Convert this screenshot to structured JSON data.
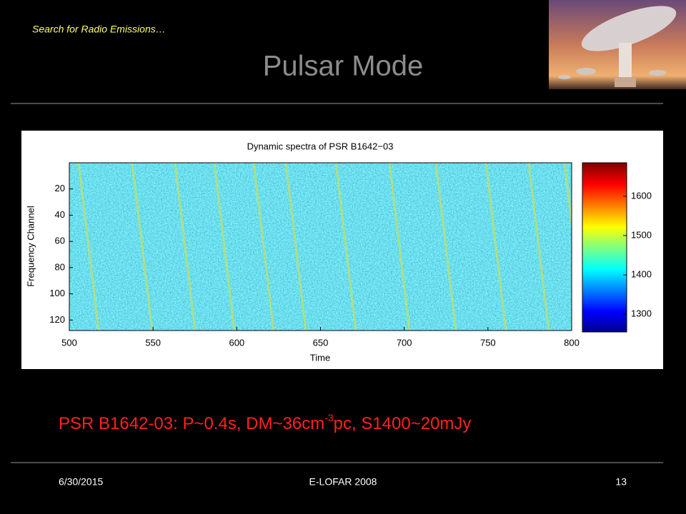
{
  "header": {
    "section": "Search for Radio Emissions…",
    "title": "Pulsar Mode"
  },
  "figure": {
    "title": "Dynamic spectra of PSR B1642−03",
    "xlabel": "Time",
    "ylabel": "Frequency Channel",
    "xlim": [
      500,
      800
    ],
    "xticks": [
      500,
      550,
      600,
      650,
      700,
      750,
      800
    ],
    "ylim": [
      0,
      128
    ],
    "y_inverted": true,
    "yticks": [
      20,
      40,
      60,
      80,
      100,
      120
    ],
    "colorbar": {
      "lim": [
        1255,
        1685
      ],
      "ticks": [
        1300,
        1400,
        1500,
        1600
      ]
    }
  },
  "caption": {
    "main": "PSR B1642-03: P~0.4s, DM~36cm",
    "superscript": "-3",
    "rest": "pc, S1400~20mJy"
  },
  "footer": {
    "date": "6/30/2015",
    "event": "E-LOFAR 2008",
    "page": 13
  }
}
